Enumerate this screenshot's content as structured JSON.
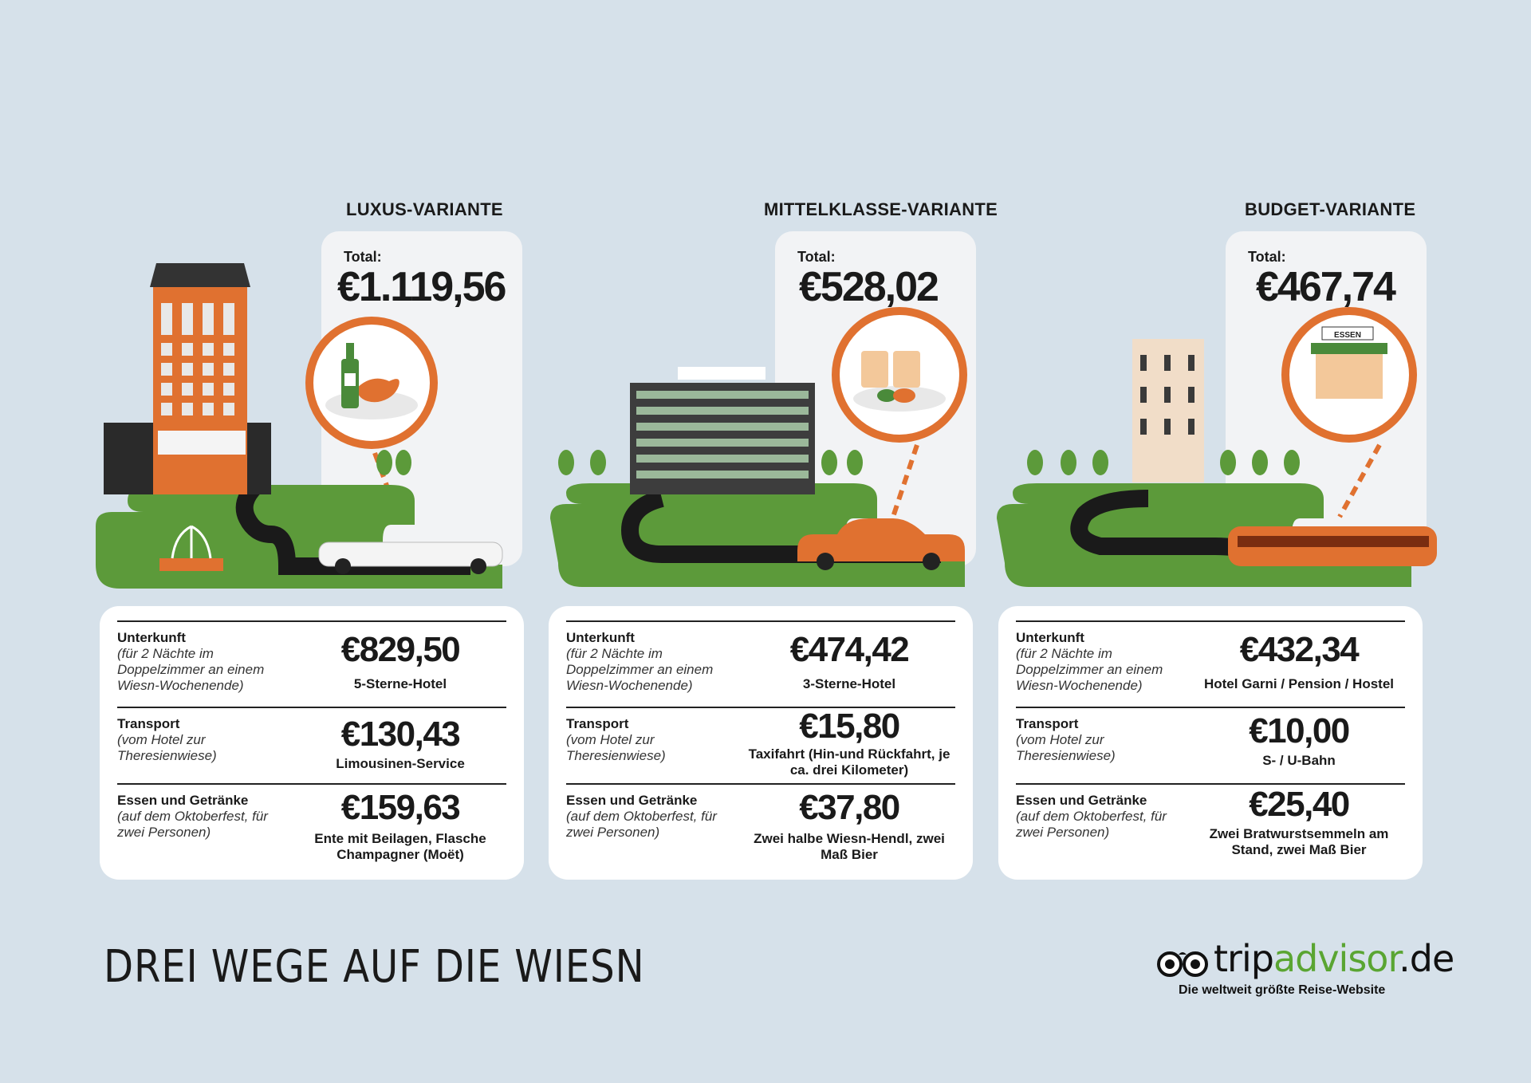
{
  "variants": [
    {
      "title": "LUXUS-VARIANTE",
      "total_label": "Total:",
      "total": "€1.119,56",
      "rows": [
        {
          "label": "Unterkunft",
          "sub": "(für 2 Nächte im Doppelzimmer an einem Wiesn-Wochenende)",
          "price": "€829,50",
          "desc": "5-Sterne-Hotel"
        },
        {
          "label": "Transport",
          "sub": "(vom Hotel zur Theresienwiese)",
          "price": "€130,43",
          "desc": "Limousinen-Service"
        },
        {
          "label": "Essen und Getränke",
          "sub": "(auf dem Oktoberfest, für zwei Personen)",
          "price": "€159,63",
          "desc": "Ente mit Beilagen, Flasche Champagner (Moët)"
        }
      ]
    },
    {
      "title": "MITTELKLASSE-VARIANTE",
      "total_label": "Total:",
      "total": "€528,02",
      "rows": [
        {
          "label": "Unterkunft",
          "sub": "(für 2 Nächte im Doppelzimmer an einem Wiesn-Wochenende)",
          "price": "€474,42",
          "desc": "3-Sterne-Hotel"
        },
        {
          "label": "Transport",
          "sub": "(vom Hotel zur Theresienwiese)",
          "price": "€15,80",
          "desc": "Taxifahrt (Hin-und Rückfahrt, je ca. drei Kilometer)"
        },
        {
          "label": "Essen und Getränke",
          "sub": "(auf dem Oktoberfest, für zwei Personen)",
          "price": "€37,80",
          "desc": "Zwei halbe Wiesn-Hendl, zwei Maß Bier"
        }
      ]
    },
    {
      "title": "BUDGET-VARIANTE",
      "total_label": "Total:",
      "total": "€467,74",
      "rows": [
        {
          "label": "Unterkunft",
          "sub": "(für 2 Nächte im Doppelzimmer an einem Wiesn-Wochenende)",
          "price": "€432,34",
          "desc": "Hotel Garni / Pension / Hostel"
        },
        {
          "label": "Transport",
          "sub": "(vom Hotel zur Theresienwiese)",
          "price": "€10,00",
          "desc": "S- / U-Bahn"
        },
        {
          "label": "Essen und Getränke",
          "sub": "(auf dem Oktoberfest, für zwei Personen)",
          "price": "€25,40",
          "desc": "Zwei Bratwurstsemmeln am Stand, zwei Maß Bier"
        }
      ]
    }
  ],
  "stand_sign": "ESSEN",
  "page_title": "DREI WEGE AUF DIE WIESN",
  "logo": {
    "trip": "trip",
    "advisor": "advisor",
    "de": ".de",
    "tagline": "Die weltweit größte Reise-Website"
  },
  "colors": {
    "background": "#d6e1ea",
    "orange": "#e07130",
    "green": "#5aa532",
    "grass": "#5c9a3a",
    "dark": "#1a1a1a"
  },
  "icons": [
    "owl-eyes-icon",
    "champagne-duck-icon",
    "beer-chicken-icon",
    "food-stand-icon",
    "limousine-icon",
    "taxi-icon",
    "train-icon"
  ]
}
